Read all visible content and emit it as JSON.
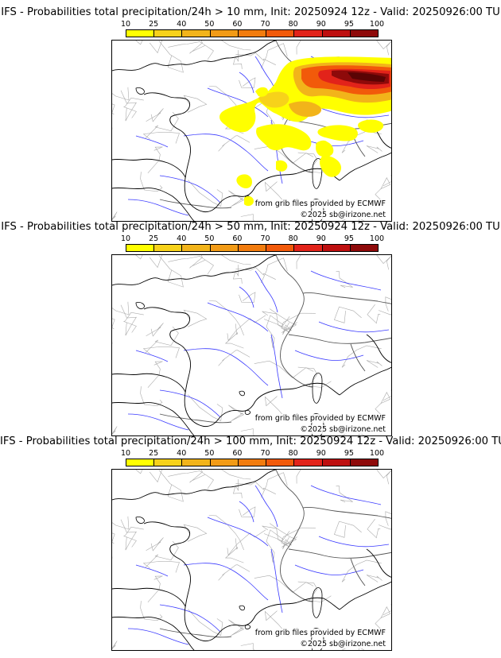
{
  "legend": {
    "ticks": [
      "10",
      "25",
      "40",
      "50",
      "60",
      "70",
      "80",
      "90",
      "95",
      "100"
    ],
    "colors": [
      "#ffff00",
      "#f7d21a",
      "#f2b41a",
      "#f29b16",
      "#f27c0e",
      "#f25a0a",
      "#e2231a",
      "#be0f0f",
      "#8e0a0a",
      "#5a0404"
    ]
  },
  "panels": [
    {
      "title": "IFS - Probabilities total precipitation/24h > 10 mm, Init: 20250924 12z - Valid: 20250926:00 TU"
    },
    {
      "title": "IFS - Probabilities total precipitation/24h > 50 mm, Init: 20250924 12z - Valid: 20250926:00 TU"
    },
    {
      "title": "IFS - Probabilities total precipitation/24h > 100 mm, Init: 20250924 12z - Valid: 20250926:00 TU"
    }
  ],
  "credits": {
    "source": "from grib files provided by ECMWF",
    "copyright": "©2025 sb@irizone.net"
  }
}
